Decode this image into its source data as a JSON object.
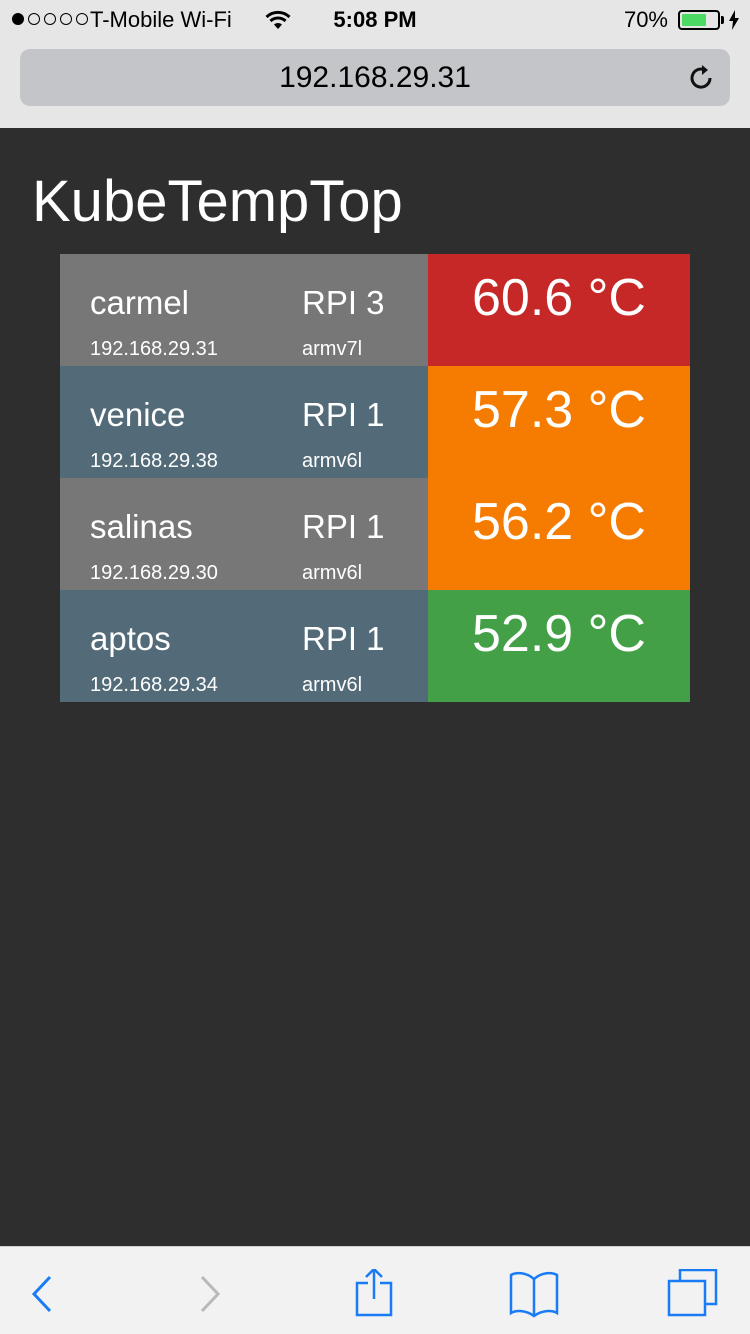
{
  "status_bar": {
    "signal_dots_filled": 1,
    "signal_dots_total": 5,
    "carrier": "T-Mobile Wi-Fi",
    "time": "5:08 PM",
    "battery_percent_label": "70%",
    "battery_level": 0.7,
    "battery_color": "#4cd964",
    "icons": [
      "signal-dots",
      "wifi-icon",
      "battery-icon",
      "charging-bolt-icon"
    ]
  },
  "browser": {
    "url": "192.168.29.31",
    "reload_icon": "reload-icon",
    "toolbar_icons": [
      "back-icon",
      "forward-icon",
      "share-icon",
      "bookmarks-icon",
      "tabs-icon"
    ],
    "accent_color": "#1a7cf5"
  },
  "page": {
    "title": "KubeTempTop",
    "background_color": "#2e2e2e",
    "nodes": [
      {
        "name": "carmel",
        "ip": "192.168.29.31",
        "model": "RPI 3",
        "arch": "armv7l",
        "temperature": "60.6 °C",
        "temp_color": "#c62828",
        "row_color": "#777777"
      },
      {
        "name": "venice",
        "ip": "192.168.29.38",
        "model": "RPI 1",
        "arch": "armv6l",
        "temperature": "57.3 °C",
        "temp_color": "#f57c00",
        "row_color": "#536b78"
      },
      {
        "name": "salinas",
        "ip": "192.168.29.30",
        "model": "RPI 1",
        "arch": "armv6l",
        "temperature": "56.2 °C",
        "temp_color": "#f57c00",
        "row_color": "#777777"
      },
      {
        "name": "aptos",
        "ip": "192.168.29.34",
        "model": "RPI 1",
        "arch": "armv6l",
        "temperature": "52.9 °C",
        "temp_color": "#43a047",
        "row_color": "#536b78"
      }
    ]
  }
}
